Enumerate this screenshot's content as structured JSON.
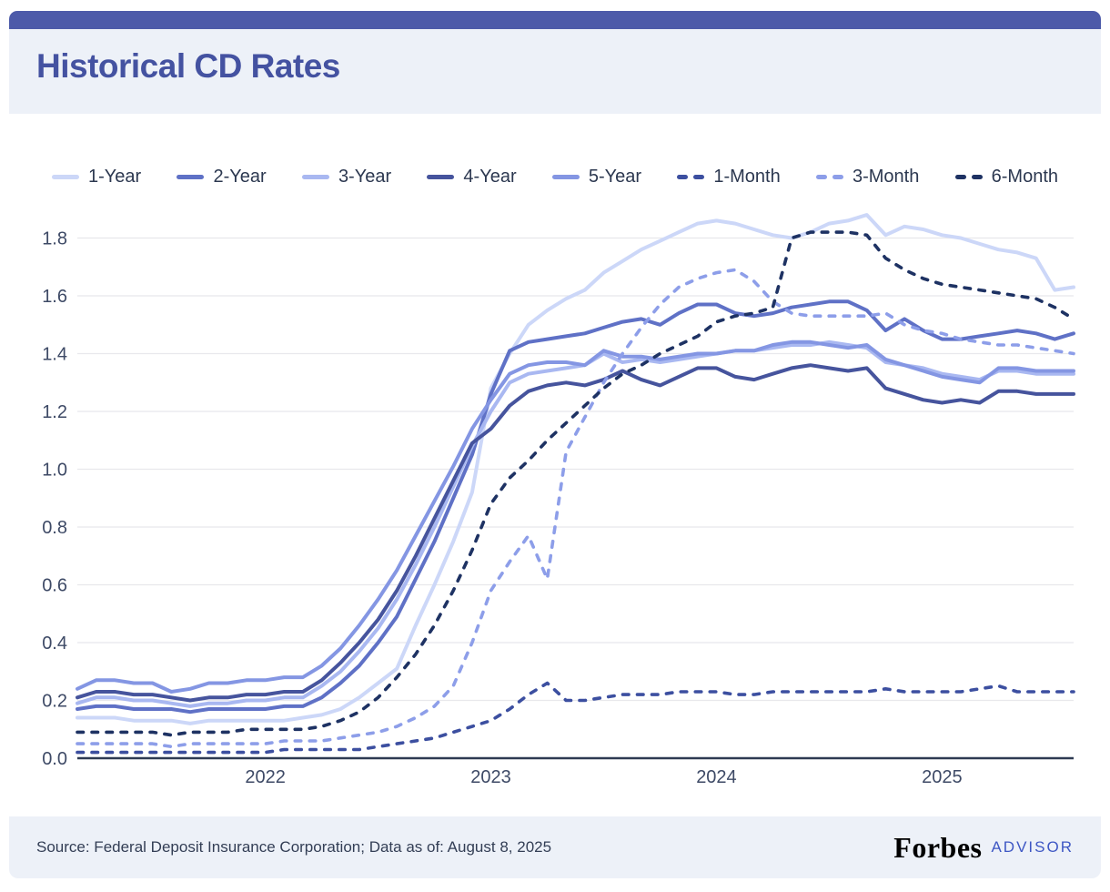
{
  "page": {
    "accent_bar_color": "#4c5aa9",
    "band_color": "#edf1f8",
    "background": "#ffffff"
  },
  "header": {
    "title": "Historical CD Rates",
    "title_color": "#4452a1"
  },
  "chart_data": {
    "type": "line",
    "title": "Historical CD Rates",
    "x_unit": "month",
    "x_range_start": "2021-03",
    "x_range_end": "2025-08",
    "x_tick_labels": [
      "2022",
      "2023",
      "2024",
      "2025"
    ],
    "x_tick_month_indices": [
      10,
      22,
      34,
      46
    ],
    "y_ticks": [
      0.0,
      0.2,
      0.4,
      0.6,
      0.8,
      1.0,
      1.2,
      1.4,
      1.6,
      1.8
    ],
    "ylim": [
      0,
      1.9
    ],
    "grid": "horizontal",
    "legend_position": "top",
    "axis_color": "#2e3a52",
    "grid_color": "#e8e8ec",
    "series": [
      {
        "name": "1-Year",
        "color": "#ccd7f8",
        "line_style": "solid",
        "values": [
          0.14,
          0.14,
          0.14,
          0.13,
          0.13,
          0.13,
          0.12,
          0.13,
          0.13,
          0.13,
          0.13,
          0.13,
          0.14,
          0.15,
          0.17,
          0.21,
          0.26,
          0.31,
          0.46,
          0.6,
          0.75,
          0.92,
          1.28,
          1.4,
          1.5,
          1.55,
          1.59,
          1.62,
          1.68,
          1.72,
          1.76,
          1.79,
          1.82,
          1.85,
          1.86,
          1.85,
          1.83,
          1.81,
          1.8,
          1.82,
          1.85,
          1.86,
          1.88,
          1.81,
          1.84,
          1.83,
          1.81,
          1.8,
          1.78,
          1.76,
          1.75,
          1.73,
          1.62,
          1.63
        ]
      },
      {
        "name": "2-Year",
        "color": "#5f71c6",
        "line_style": "solid",
        "values": [
          0.17,
          0.18,
          0.18,
          0.17,
          0.17,
          0.17,
          0.16,
          0.17,
          0.17,
          0.17,
          0.17,
          0.18,
          0.18,
          0.21,
          0.26,
          0.32,
          0.4,
          0.49,
          0.62,
          0.75,
          0.9,
          1.05,
          1.26,
          1.41,
          1.44,
          1.45,
          1.46,
          1.47,
          1.49,
          1.51,
          1.52,
          1.5,
          1.54,
          1.57,
          1.57,
          1.54,
          1.53,
          1.54,
          1.56,
          1.57,
          1.58,
          1.58,
          1.55,
          1.48,
          1.52,
          1.48,
          1.45,
          1.45,
          1.46,
          1.47,
          1.48,
          1.47,
          1.45,
          1.47
        ]
      },
      {
        "name": "3-Year",
        "color": "#a9b8f1",
        "line_style": "solid",
        "values": [
          0.19,
          0.21,
          0.21,
          0.2,
          0.2,
          0.19,
          0.18,
          0.19,
          0.19,
          0.2,
          0.2,
          0.21,
          0.21,
          0.25,
          0.3,
          0.37,
          0.45,
          0.55,
          0.67,
          0.8,
          0.94,
          1.08,
          1.2,
          1.3,
          1.33,
          1.34,
          1.35,
          1.36,
          1.4,
          1.37,
          1.38,
          1.37,
          1.38,
          1.39,
          1.4,
          1.41,
          1.41,
          1.42,
          1.43,
          1.43,
          1.44,
          1.43,
          1.42,
          1.37,
          1.36,
          1.35,
          1.33,
          1.32,
          1.31,
          1.34,
          1.34,
          1.33,
          1.33,
          1.33
        ]
      },
      {
        "name": "4-Year",
        "color": "#46549d",
        "line_style": "solid",
        "values": [
          0.21,
          0.23,
          0.23,
          0.22,
          0.22,
          0.21,
          0.2,
          0.21,
          0.21,
          0.22,
          0.22,
          0.23,
          0.23,
          0.27,
          0.33,
          0.4,
          0.48,
          0.58,
          0.7,
          0.83,
          0.96,
          1.09,
          1.14,
          1.22,
          1.27,
          1.29,
          1.3,
          1.29,
          1.31,
          1.34,
          1.31,
          1.29,
          1.32,
          1.35,
          1.35,
          1.32,
          1.31,
          1.33,
          1.35,
          1.36,
          1.35,
          1.34,
          1.35,
          1.28,
          1.26,
          1.24,
          1.23,
          1.24,
          1.23,
          1.27,
          1.27,
          1.26,
          1.26,
          1.26
        ]
      },
      {
        "name": "5-Year",
        "color": "#8496e3",
        "line_style": "solid",
        "values": [
          0.24,
          0.27,
          0.27,
          0.26,
          0.26,
          0.23,
          0.24,
          0.26,
          0.26,
          0.27,
          0.27,
          0.28,
          0.28,
          0.32,
          0.38,
          0.46,
          0.55,
          0.65,
          0.77,
          0.89,
          1.01,
          1.14,
          1.24,
          1.33,
          1.36,
          1.37,
          1.37,
          1.36,
          1.41,
          1.39,
          1.39,
          1.38,
          1.39,
          1.4,
          1.4,
          1.41,
          1.41,
          1.43,
          1.44,
          1.44,
          1.43,
          1.42,
          1.43,
          1.38,
          1.36,
          1.34,
          1.32,
          1.31,
          1.3,
          1.35,
          1.35,
          1.34,
          1.34,
          1.34
        ]
      },
      {
        "name": "1-Month",
        "color": "#3c4fa0",
        "line_style": "dashed",
        "values": [
          0.02,
          0.02,
          0.02,
          0.02,
          0.02,
          0.02,
          0.02,
          0.02,
          0.02,
          0.02,
          0.02,
          0.03,
          0.03,
          0.03,
          0.03,
          0.03,
          0.04,
          0.05,
          0.06,
          0.07,
          0.09,
          0.11,
          0.13,
          0.17,
          0.22,
          0.26,
          0.2,
          0.2,
          0.21,
          0.22,
          0.22,
          0.22,
          0.23,
          0.23,
          0.23,
          0.22,
          0.22,
          0.23,
          0.23,
          0.23,
          0.23,
          0.23,
          0.23,
          0.24,
          0.23,
          0.23,
          0.23,
          0.23,
          0.24,
          0.25,
          0.23,
          0.23,
          0.23,
          0.23
        ]
      },
      {
        "name": "3-Month",
        "color": "#8d9ee9",
        "line_style": "dashed",
        "values": [
          0.05,
          0.05,
          0.05,
          0.05,
          0.05,
          0.04,
          0.05,
          0.05,
          0.05,
          0.05,
          0.05,
          0.06,
          0.06,
          0.06,
          0.07,
          0.08,
          0.09,
          0.11,
          0.14,
          0.18,
          0.25,
          0.4,
          0.58,
          0.68,
          0.77,
          0.62,
          1.06,
          1.18,
          1.3,
          1.4,
          1.49,
          1.57,
          1.63,
          1.66,
          1.68,
          1.69,
          1.65,
          1.58,
          1.54,
          1.53,
          1.53,
          1.53,
          1.53,
          1.54,
          1.5,
          1.48,
          1.47,
          1.45,
          1.44,
          1.43,
          1.43,
          1.42,
          1.41,
          1.4
        ]
      },
      {
        "name": "6-Month",
        "color": "#1e3263",
        "line_style": "dashed",
        "values": [
          0.09,
          0.09,
          0.09,
          0.09,
          0.09,
          0.08,
          0.09,
          0.09,
          0.09,
          0.1,
          0.1,
          0.1,
          0.1,
          0.11,
          0.13,
          0.16,
          0.21,
          0.28,
          0.36,
          0.46,
          0.58,
          0.72,
          0.88,
          0.97,
          1.03,
          1.1,
          1.16,
          1.22,
          1.28,
          1.33,
          1.36,
          1.4,
          1.43,
          1.46,
          1.51,
          1.53,
          1.54,
          1.56,
          1.8,
          1.82,
          1.82,
          1.82,
          1.81,
          1.73,
          1.69,
          1.66,
          1.64,
          1.63,
          1.62,
          1.61,
          1.6,
          1.59,
          1.56,
          1.52
        ]
      }
    ]
  },
  "footer": {
    "source": "Source: Federal Deposit Insurance Corporation; Data as of: August 8, 2025",
    "brand": "Forbes",
    "brand_suffix": "ADVISOR"
  }
}
